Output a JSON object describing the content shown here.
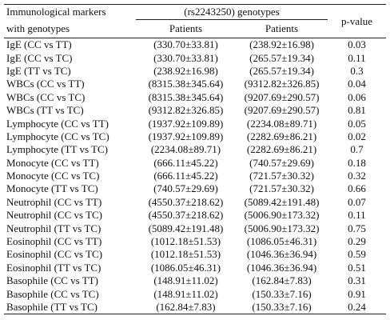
{
  "table": {
    "header": {
      "marker": [
        "Immunological markers",
        "with genotypes"
      ],
      "group": "(rs2243250) genotypes",
      "sub": [
        "Patients",
        "Patients"
      ],
      "pvalue": "p-value"
    },
    "rows": [
      [
        "IgE (CC vs TT)",
        "(330.70±33.81)",
        "(238.92±16.98)",
        "0.03"
      ],
      [
        "IgE (CC vs TC)",
        "(330.70±33.81)",
        "(265.57±19.34)",
        "0.11"
      ],
      [
        "IgE (TT vs TC)",
        "(238.92±16.98)",
        "(265.57±19.34)",
        "0.3"
      ],
      [
        "WBCs (CC vs TT)",
        "(8315.38±345.64)",
        "(9312.82±326.85)",
        "0.04"
      ],
      [
        "WBCs (CC vs TC)",
        "(8315.38±345.64)",
        "(9207.69±290.57)",
        "0.06"
      ],
      [
        "WBCs (TT vs TC)",
        "(9312.82±326.85)",
        "(9207.69±290.57)",
        "0.81"
      ],
      [
        "Lymphocyte (CC vs TT)",
        "(1937.92±109.89)",
        "(2234.08±89.71)",
        "0.05"
      ],
      [
        "Lymphocyte (CC vs TC)",
        "(1937.92±109.89)",
        "(2282.69±86.21)",
        "0.02"
      ],
      [
        "Lymphocyte (TT vs TC)",
        "(2234.08±89.71)",
        "(2282.69±86.21)",
        "0.7"
      ],
      [
        "Monocyte (CC vs TT)",
        "(666.11±45.22)",
        "(740.57±29.69)",
        "0.18"
      ],
      [
        "Monocyte (CC vs TC)",
        "(666.11±45.22)",
        "(721.57±30.32)",
        "0.32"
      ],
      [
        "Monocyte (TT vs TC)",
        "(740.57±29.69)",
        "(721.57±30.32)",
        "0.66"
      ],
      [
        "Neutrophil (CC vs TT)",
        "(4550.37±218.62)",
        "(5089.42±191.48)",
        "0.07"
      ],
      [
        "Neutrophil (CC vs TC)",
        "(4550.37±218.62)",
        "(5006.90±173.32)",
        "0.11"
      ],
      [
        "Neutrophil (TT vs TC)",
        "(5089.42±191.48)",
        "(5006.90±173.32)",
        "0.75"
      ],
      [
        "Eosinophil (CC vs TT)",
        "(1012.18±51.53)",
        "(1086.05±46.31)",
        "0.29"
      ],
      [
        "Eosinophil (CC vs TC)",
        "(1012.18±51.53)",
        "(1046.36±36.94)",
        "0.59"
      ],
      [
        "Eosinophil (TT vs TC)",
        "(1086.05±46.31)",
        "(1046.36±36.94)",
        "0.51"
      ],
      [
        "Basophile (CC vs TT)",
        "(148.91±11.02)",
        "(162.84±7.83)",
        "0.31"
      ],
      [
        "Basophile (CC vs TC)",
        "(148.91±11.02)",
        "(150.33±7.16)",
        "0.91"
      ],
      [
        "Basophile (TT vs TC)",
        "(162.84±7.83)",
        "(150.33±7.16)",
        "0.24"
      ]
    ]
  }
}
